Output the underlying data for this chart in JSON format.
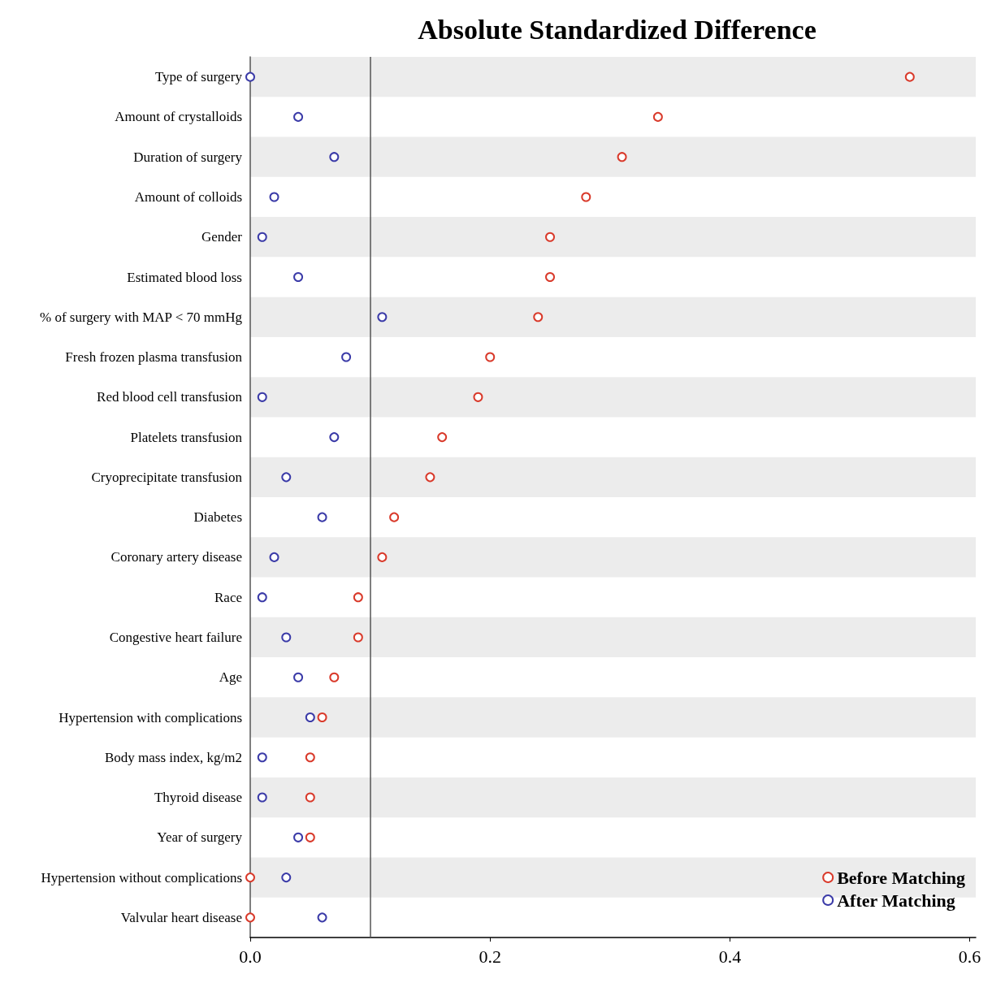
{
  "chart_data": {
    "type": "scatter",
    "title": "Absolute Standardized Difference",
    "categories": [
      "Type of surgery",
      "Amount of crystalloids",
      "Duration of surgery",
      "Amount of colloids",
      "Gender",
      "Estimated blood loss",
      "% of surgery with MAP < 70 mmHg",
      "Fresh frozen plasma transfusion",
      "Red blood cell transfusion",
      "Platelets transfusion",
      "Cryoprecipitate transfusion",
      "Diabetes",
      "Coronary artery disease",
      "Race",
      "Congestive heart failure",
      "Age",
      "Hypertension with complications",
      "Body mass index, kg/m2",
      "Thyroid disease",
      "Year of surgery",
      "Hypertension without complications",
      "Valvular heart disease"
    ],
    "series": [
      {
        "name": "Before Matching",
        "color": "#d93a2b",
        "values": [
          0.55,
          0.34,
          0.31,
          0.28,
          0.25,
          0.25,
          0.24,
          0.2,
          0.19,
          0.16,
          0.15,
          0.12,
          0.11,
          0.09,
          0.09,
          0.07,
          0.06,
          0.05,
          0.05,
          0.05,
          0.0,
          0.0
        ]
      },
      {
        "name": "After Matching",
        "color": "#3b3ba8",
        "values": [
          0.0,
          0.04,
          0.07,
          0.02,
          0.01,
          0.04,
          0.11,
          0.08,
          0.01,
          0.07,
          0.03,
          0.06,
          0.02,
          0.01,
          0.03,
          0.04,
          0.05,
          0.01,
          0.01,
          0.04,
          0.03,
          0.06
        ]
      }
    ],
    "orientation": "horizontal",
    "xlim": [
      0,
      0.605
    ],
    "xticks": [
      {
        "value": 0,
        "label": "0.0"
      },
      {
        "value": 0.2,
        "label": "0.2"
      },
      {
        "value": 0.4,
        "label": "0.4"
      },
      {
        "value": 0.6,
        "label": "0.6"
      }
    ],
    "ref_lines": [
      {
        "axis": "x",
        "value": 0.1,
        "label": null,
        "color": "#555555"
      }
    ],
    "legend": "bottom right",
    "marker": "circle",
    "grid": false
  }
}
